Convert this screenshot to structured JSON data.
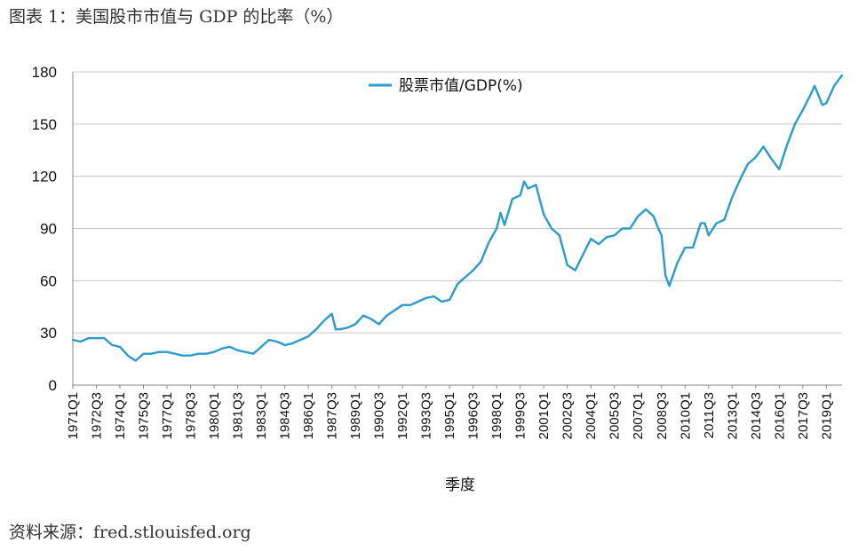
{
  "caption": "图表 1：美国股市市值与 GDP 的比率（%）",
  "source": "资料来源：fred.stlouisfed.org",
  "chart_data": {
    "type": "line",
    "title": "",
    "xlabel": "季度",
    "ylabel": "",
    "ylim": [
      0,
      180
    ],
    "yticks": [
      0,
      30,
      60,
      90,
      120,
      150,
      180
    ],
    "grid": true,
    "legend_position": "top-center",
    "x_start": "1971Q1",
    "x_end": "2020Q1",
    "xticks": [
      "1971Q1",
      "1972Q3",
      "1974Q1",
      "1975Q3",
      "1977Q1",
      "1978Q3",
      "1980Q1",
      "1981Q3",
      "1983Q1",
      "1984Q3",
      "1986Q1",
      "1987Q3",
      "1989Q1",
      "1990Q3",
      "1992Q1",
      "1993Q3",
      "1995Q1",
      "1996Q3",
      "1998Q1",
      "1999Q3",
      "2001Q1",
      "2002Q3",
      "2004Q1",
      "2005Q3",
      "2007Q1",
      "2008Q3",
      "2010Q1",
      "2011Q3",
      "2013Q1",
      "2014Q3",
      "2016Q1",
      "2017Q3",
      "2019Q1"
    ],
    "series": [
      {
        "name": "股票市值/GDP(%)",
        "color": "#2b9ccc",
        "points": [
          [
            "1971Q1",
            26
          ],
          [
            "1971Q3",
            25
          ],
          [
            "1972Q1",
            27
          ],
          [
            "1972Q3",
            27
          ],
          [
            "1973Q1",
            27
          ],
          [
            "1973Q3",
            23
          ],
          [
            "1974Q1",
            22
          ],
          [
            "1974Q3",
            17
          ],
          [
            "1975Q1",
            14
          ],
          [
            "1975Q3",
            18
          ],
          [
            "1976Q1",
            18
          ],
          [
            "1976Q3",
            19
          ],
          [
            "1977Q1",
            19
          ],
          [
            "1977Q3",
            18
          ],
          [
            "1978Q1",
            17
          ],
          [
            "1978Q3",
            17
          ],
          [
            "1979Q1",
            18
          ],
          [
            "1979Q3",
            18
          ],
          [
            "1980Q1",
            19
          ],
          [
            "1980Q3",
            21
          ],
          [
            "1981Q1",
            22
          ],
          [
            "1981Q3",
            20
          ],
          [
            "1982Q1",
            19
          ],
          [
            "1982Q3",
            18
          ],
          [
            "1983Q1",
            22
          ],
          [
            "1983Q3",
            26
          ],
          [
            "1984Q1",
            25
          ],
          [
            "1984Q3",
            23
          ],
          [
            "1985Q1",
            24
          ],
          [
            "1985Q3",
            26
          ],
          [
            "1986Q1",
            28
          ],
          [
            "1986Q3",
            32
          ],
          [
            "1987Q1",
            37
          ],
          [
            "1987Q3",
            41
          ],
          [
            "1987Q4",
            32
          ],
          [
            "1988Q1",
            32
          ],
          [
            "1988Q3",
            33
          ],
          [
            "1989Q1",
            35
          ],
          [
            "1989Q3",
            40
          ],
          [
            "1990Q1",
            38
          ],
          [
            "1990Q3",
            35
          ],
          [
            "1991Q1",
            40
          ],
          [
            "1991Q3",
            43
          ],
          [
            "1992Q1",
            46
          ],
          [
            "1992Q3",
            46
          ],
          [
            "1993Q1",
            48
          ],
          [
            "1993Q3",
            50
          ],
          [
            "1994Q1",
            51
          ],
          [
            "1994Q3",
            48
          ],
          [
            "1995Q1",
            49
          ],
          [
            "1995Q3",
            58
          ],
          [
            "1996Q1",
            62
          ],
          [
            "1996Q3",
            66
          ],
          [
            "1997Q1",
            71
          ],
          [
            "1997Q3",
            82
          ],
          [
            "1998Q1",
            90
          ],
          [
            "1998Q2",
            99
          ],
          [
            "1998Q3",
            92
          ],
          [
            "1999Q1",
            107
          ],
          [
            "1999Q3",
            109
          ],
          [
            "1999Q4",
            117
          ],
          [
            "2000Q1",
            113
          ],
          [
            "2000Q3",
            115
          ],
          [
            "2001Q1",
            98
          ],
          [
            "2001Q3",
            90
          ],
          [
            "2002Q1",
            86
          ],
          [
            "2002Q3",
            69
          ],
          [
            "2003Q1",
            66
          ],
          [
            "2003Q3",
            75
          ],
          [
            "2004Q1",
            84
          ],
          [
            "2004Q3",
            81
          ],
          [
            "2005Q1",
            85
          ],
          [
            "2005Q3",
            86
          ],
          [
            "2006Q1",
            90
          ],
          [
            "2006Q3",
            90
          ],
          [
            "2007Q1",
            97
          ],
          [
            "2007Q3",
            101
          ],
          [
            "2008Q1",
            97
          ],
          [
            "2008Q2",
            91
          ],
          [
            "2008Q3",
            86
          ],
          [
            "2008Q4",
            63
          ],
          [
            "2009Q1",
            57
          ],
          [
            "2009Q3",
            70
          ],
          [
            "2010Q1",
            79
          ],
          [
            "2010Q3",
            79
          ],
          [
            "2011Q1",
            93
          ],
          [
            "2011Q2",
            93
          ],
          [
            "2011Q3",
            86
          ],
          [
            "2012Q1",
            93
          ],
          [
            "2012Q3",
            95
          ],
          [
            "2013Q1",
            108
          ],
          [
            "2013Q3",
            118
          ],
          [
            "2014Q1",
            127
          ],
          [
            "2014Q3",
            131
          ],
          [
            "2015Q1",
            137
          ],
          [
            "2015Q3",
            130
          ],
          [
            "2016Q1",
            124
          ],
          [
            "2016Q3",
            138
          ],
          [
            "2017Q1",
            150
          ],
          [
            "2017Q3",
            158
          ],
          [
            "2018Q1",
            167
          ],
          [
            "2018Q2",
            172
          ],
          [
            "2018Q4",
            161
          ],
          [
            "2019Q1",
            162
          ],
          [
            "2019Q3",
            172
          ],
          [
            "2020Q1",
            178
          ]
        ]
      }
    ]
  }
}
